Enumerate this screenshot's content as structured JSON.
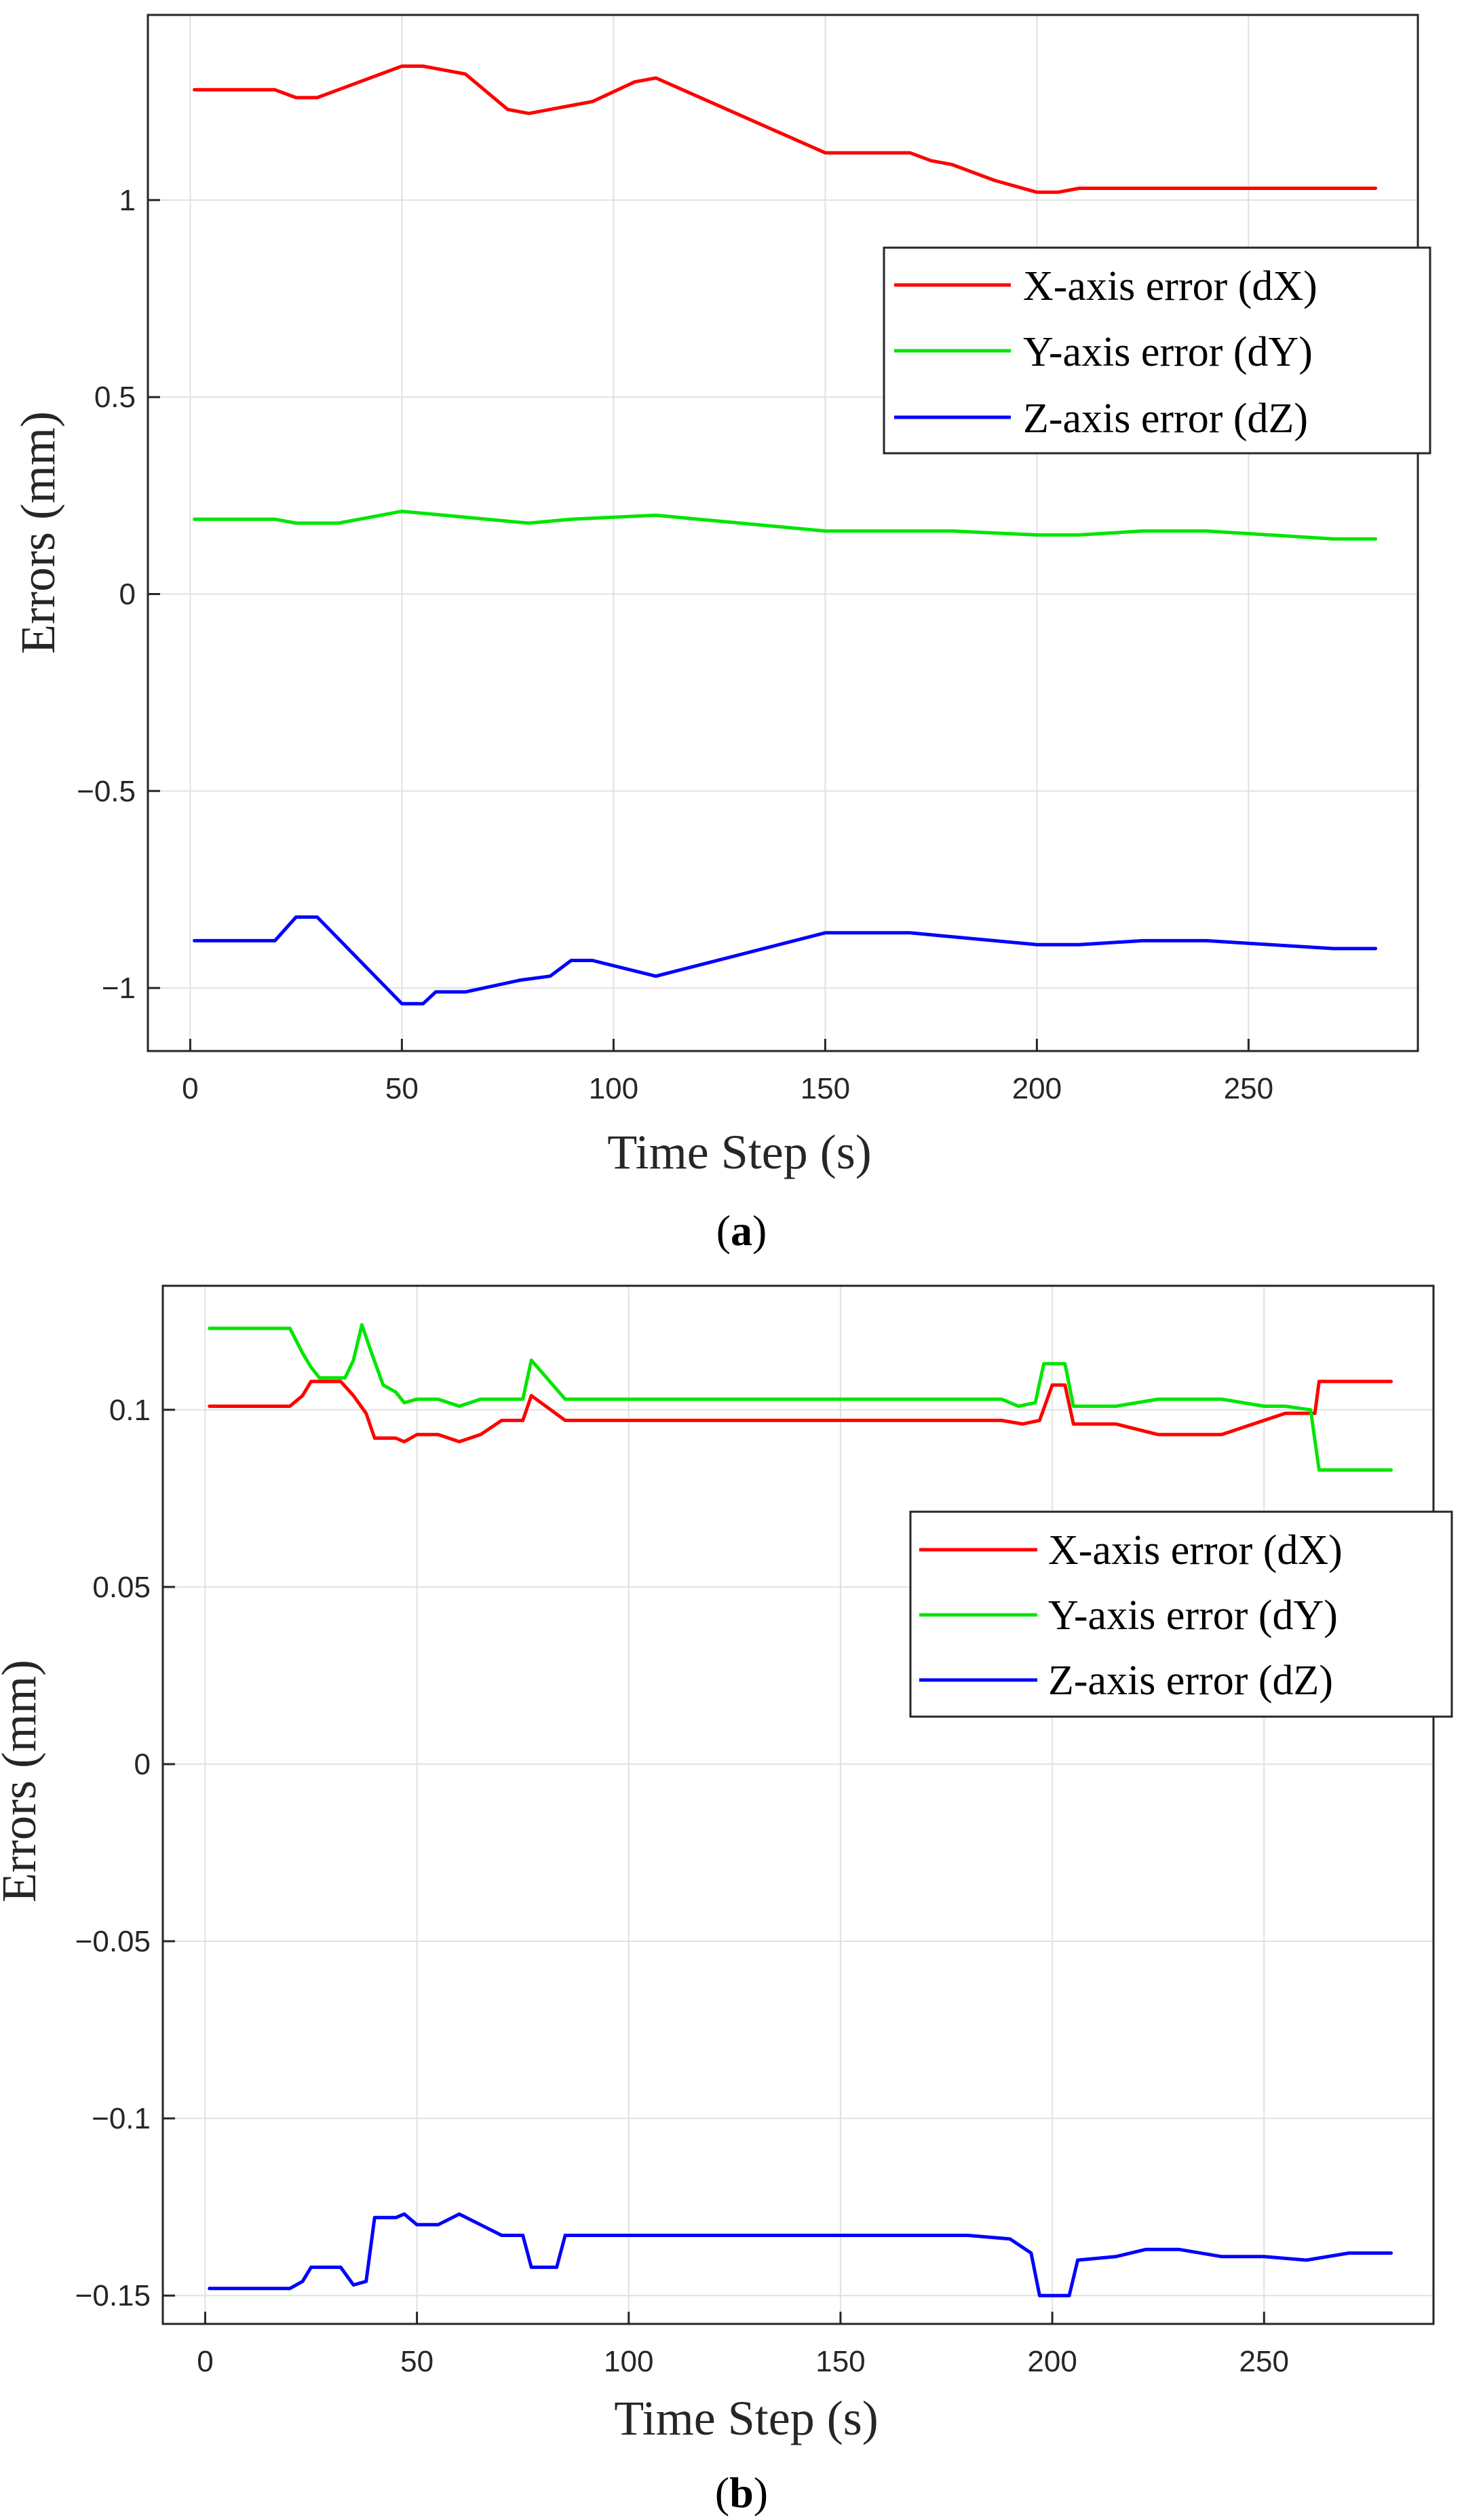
{
  "figure": {
    "caption_a": {
      "open": "(",
      "letter": "a",
      "close": ")"
    },
    "caption_b": {
      "open": "(",
      "letter": "b",
      "close": ")"
    }
  },
  "colors": {
    "x": "#ff0000",
    "y": "#00e600",
    "z": "#0000ff",
    "grid": "#e1e1e1",
    "axis": "#262626"
  },
  "chart_data": [
    {
      "type": "line",
      "id": "a",
      "title": "",
      "xlabel": "Time Step (s)",
      "ylabel": "Errors (mm)",
      "xlim": [
        -10,
        290
      ],
      "ylim": [
        -1.16,
        1.47
      ],
      "xticks": [
        0,
        50,
        100,
        150,
        200,
        250
      ],
      "xtick_labels": [
        "0",
        "50",
        "100",
        "150",
        "200",
        "250"
      ],
      "yticks": [
        -1,
        -0.5,
        0,
        0.5,
        1
      ],
      "ytick_labels": [
        "−1",
        "−0.5",
        "0",
        "0.5",
        "1"
      ],
      "grid": true,
      "legend_position": "center-right",
      "series": [
        {
          "name": "X-axis error (dX)",
          "color": "#ff0000",
          "x": [
            1,
            20,
            25,
            30,
            40,
            50,
            55,
            60,
            65,
            75,
            80,
            85,
            90,
            95,
            105,
            110,
            150,
            160,
            170,
            175,
            180,
            190,
            200,
            205,
            210,
            230,
            250,
            270,
            280
          ],
          "y": [
            1.28,
            1.28,
            1.26,
            1.26,
            1.3,
            1.34,
            1.34,
            1.33,
            1.32,
            1.23,
            1.22,
            1.23,
            1.24,
            1.25,
            1.3,
            1.31,
            1.12,
            1.12,
            1.12,
            1.1,
            1.09,
            1.05,
            1.02,
            1.02,
            1.03,
            1.03,
            1.03,
            1.03,
            1.03
          ]
        },
        {
          "name": "Y-axis error (dY)",
          "color": "#00e600",
          "x": [
            1,
            20,
            25,
            35,
            50,
            60,
            80,
            90,
            110,
            150,
            180,
            200,
            210,
            225,
            240,
            270,
            280
          ],
          "y": [
            0.19,
            0.19,
            0.18,
            0.18,
            0.21,
            0.2,
            0.18,
            0.19,
            0.2,
            0.16,
            0.16,
            0.15,
            0.15,
            0.16,
            0.16,
            0.14,
            0.14
          ]
        },
        {
          "name": "Z-axis error (dZ)",
          "color": "#0000ff",
          "x": [
            1,
            20,
            25,
            30,
            50,
            55,
            58,
            65,
            78,
            85,
            90,
            95,
            110,
            150,
            170,
            200,
            210,
            225,
            240,
            270,
            280
          ],
          "y": [
            -0.88,
            -0.88,
            -0.82,
            -0.82,
            -1.04,
            -1.04,
            -1.01,
            -1.01,
            -0.98,
            -0.97,
            -0.93,
            -0.93,
            -0.97,
            -0.86,
            -0.86,
            -0.89,
            -0.89,
            -0.88,
            -0.88,
            -0.9,
            -0.9
          ]
        }
      ]
    },
    {
      "type": "line",
      "id": "b",
      "title": "",
      "xlabel": "Time Step (s)",
      "ylabel": "Errors (mm)",
      "xlim": [
        -10,
        290
      ],
      "ylim": [
        -0.158,
        0.135
      ],
      "xticks": [
        0,
        50,
        100,
        150,
        200,
        250
      ],
      "xtick_labels": [
        "0",
        "50",
        "100",
        "150",
        "200",
        "250"
      ],
      "yticks": [
        -0.15,
        -0.1,
        -0.05,
        0,
        0.05,
        0.1
      ],
      "ytick_labels": [
        "−0.15",
        "−0.1",
        "−0.05",
        "0",
        "0.05",
        "0.1"
      ],
      "grid": true,
      "legend_position": "upper-right",
      "series": [
        {
          "name": "X-axis error (dX)",
          "color": "#ff0000",
          "x": [
            1,
            20,
            23,
            25,
            32,
            35,
            38,
            40,
            45,
            47,
            50,
            55,
            60,
            65,
            70,
            75,
            77,
            85,
            100,
            150,
            188,
            193,
            197,
            200,
            203,
            205,
            215,
            225,
            235,
            240,
            250,
            255,
            262,
            263,
            280
          ],
          "y": [
            0.101,
            0.101,
            0.104,
            0.108,
            0.108,
            0.104,
            0.099,
            0.092,
            0.092,
            0.091,
            0.093,
            0.093,
            0.091,
            0.093,
            0.097,
            0.097,
            0.104,
            0.097,
            0.097,
            0.097,
            0.097,
            0.096,
            0.097,
            0.107,
            0.107,
            0.096,
            0.096,
            0.093,
            0.093,
            0.093,
            0.097,
            0.099,
            0.099,
            0.108,
            0.108
          ]
        },
        {
          "name": "Y-axis error (dY)",
          "color": "#00e600",
          "x": [
            1,
            20,
            23,
            25,
            27,
            33,
            35,
            37,
            39,
            42,
            45,
            47,
            50,
            55,
            60,
            65,
            75,
            77,
            85,
            100,
            150,
            188,
            192,
            196,
            198,
            203,
            205,
            215,
            225,
            240,
            250,
            255,
            261,
            263,
            280
          ],
          "y": [
            0.123,
            0.123,
            0.116,
            0.112,
            0.109,
            0.109,
            0.114,
            0.124,
            0.117,
            0.107,
            0.105,
            0.102,
            0.103,
            0.103,
            0.101,
            0.103,
            0.103,
            0.114,
            0.103,
            0.103,
            0.103,
            0.103,
            0.101,
            0.102,
            0.113,
            0.113,
            0.101,
            0.101,
            0.103,
            0.103,
            0.101,
            0.101,
            0.1,
            0.083,
            0.083
          ]
        },
        {
          "name": "Z-axis error (dZ)",
          "color": "#0000ff",
          "x": [
            1,
            20,
            23,
            25,
            32,
            35,
            38,
            40,
            45,
            47,
            50,
            55,
            60,
            65,
            70,
            75,
            77,
            83,
            85,
            100,
            150,
            180,
            190,
            195,
            197,
            204,
            206,
            215,
            222,
            230,
            240,
            250,
            260,
            270,
            280
          ],
          "y": [
            -0.148,
            -0.148,
            -0.146,
            -0.142,
            -0.142,
            -0.147,
            -0.146,
            -0.128,
            -0.128,
            -0.127,
            -0.13,
            -0.13,
            -0.127,
            -0.13,
            -0.133,
            -0.133,
            -0.142,
            -0.142,
            -0.133,
            -0.133,
            -0.133,
            -0.133,
            -0.134,
            -0.138,
            -0.15,
            -0.15,
            -0.14,
            -0.139,
            -0.137,
            -0.137,
            -0.139,
            -0.139,
            -0.14,
            -0.138,
            -0.138
          ]
        }
      ]
    }
  ]
}
